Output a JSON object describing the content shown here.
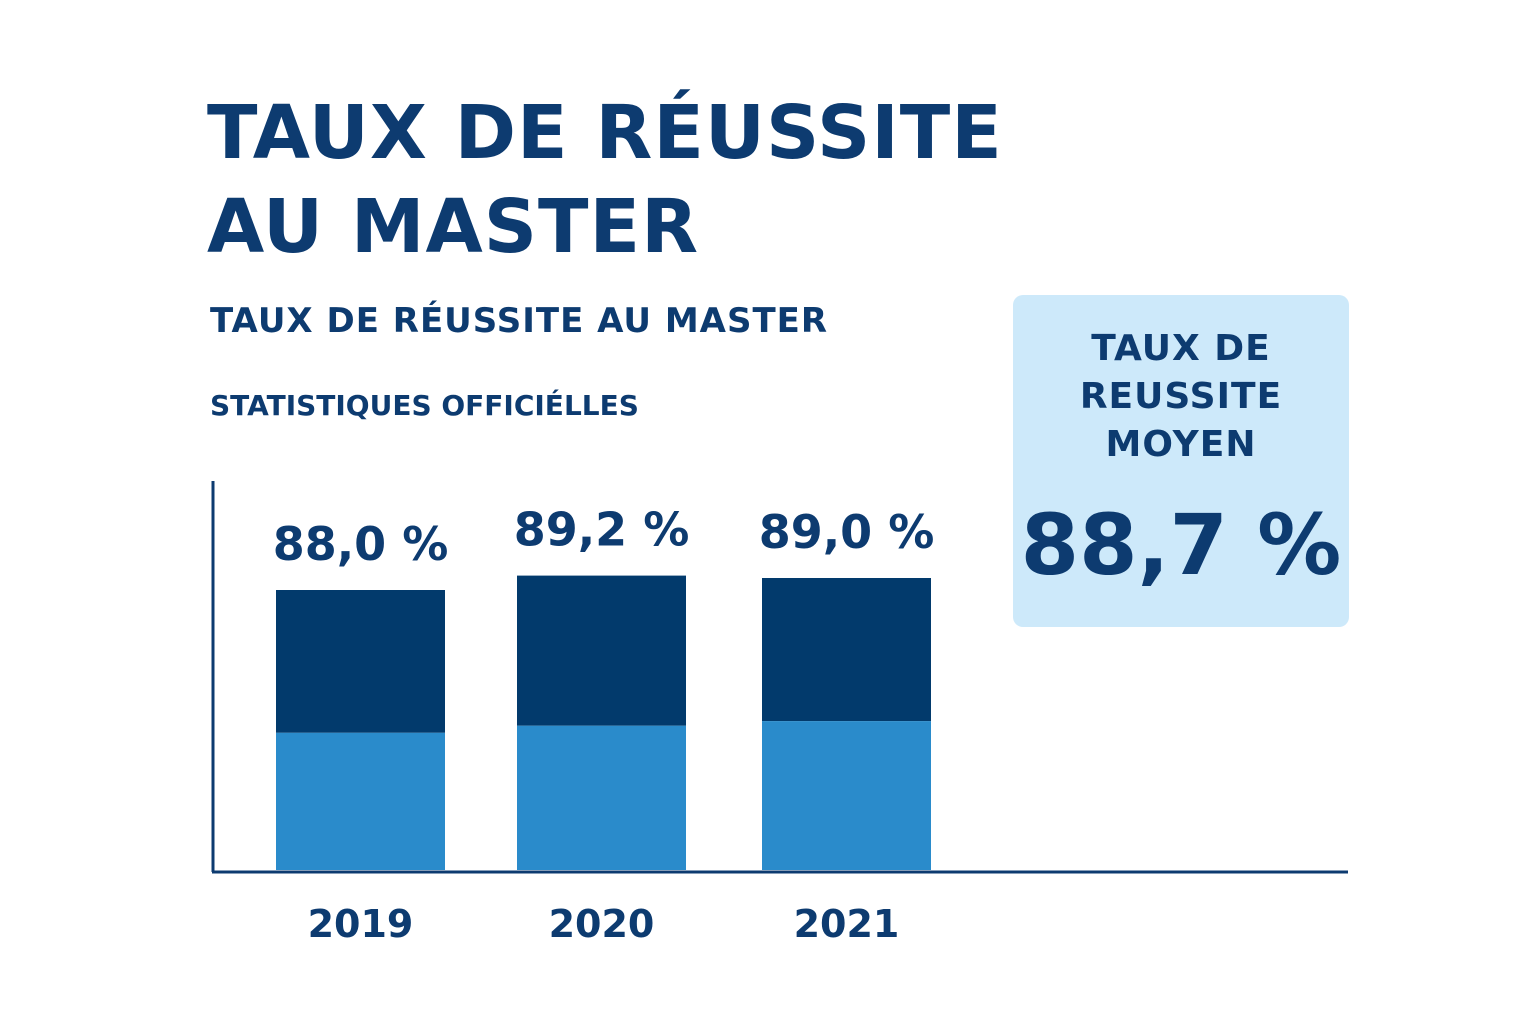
{
  "header": {
    "title_line1": "TAUX DE RÉUSSITE",
    "title_line2": "AU MASTER",
    "subtitle": "TAUX DE RÉUSSITE AU MASTER",
    "source": "STATISTIQUES OFFICIÉLLES"
  },
  "summary": {
    "label_line1": "TAUX DE",
    "label_line2": "REUSSITE",
    "label_line3": "MOYEN",
    "value": "88,7 %"
  },
  "colors": {
    "dark_navy": "#04386b",
    "bar_top": "#023a6c",
    "bar_bottom": "#2a8bcb",
    "summary_bg": "#cde9fa"
  },
  "chart_data": {
    "type": "bar",
    "categories": [
      "2019",
      "2020",
      "2021"
    ],
    "values": [
      88.0,
      89.2,
      89.0
    ],
    "value_labels": [
      "88,0 %",
      "89,2 %",
      "89,0 %"
    ],
    "title": "TAUX DE RÉUSSITE AU MASTER",
    "xlabel": "",
    "ylabel": "",
    "grid": false,
    "legend": "none"
  }
}
